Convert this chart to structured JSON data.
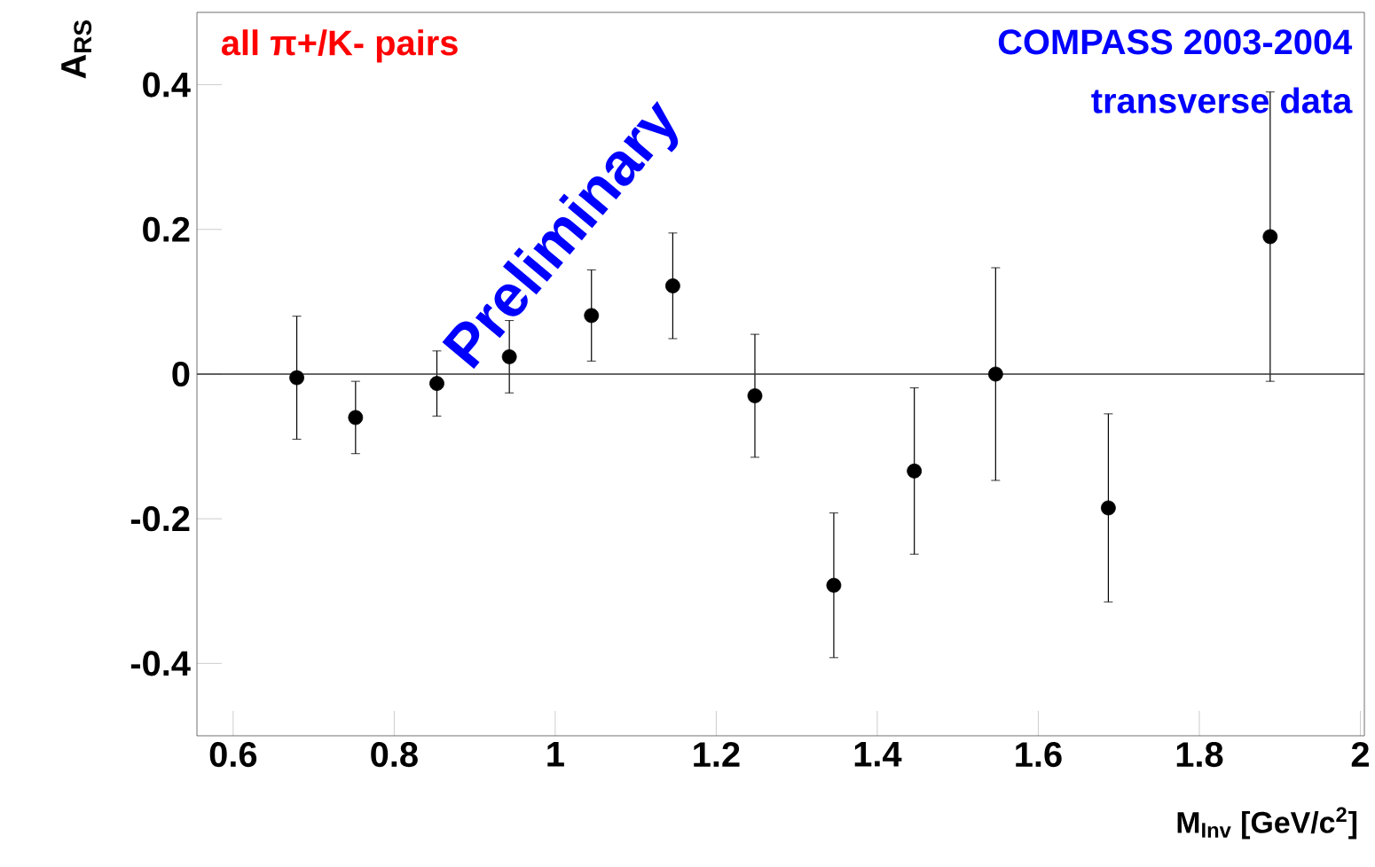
{
  "chart_data": {
    "type": "scatter",
    "xlabel": "M$_{Inv}$ [GeV/c$^{2}$]",
    "ylabel": "A$_{RS}$",
    "annotations": [
      "all π+/K- pairs",
      "COMPASS 2003-2004",
      "transverse data",
      "Preliminary"
    ],
    "x": [
      0.679,
      0.752,
      0.853,
      0.943,
      1.045,
      1.146,
      1.248,
      1.346,
      1.446,
      1.547,
      1.687,
      1.888
    ],
    "series": [
      {
        "color": "#000000",
        "values": [
          -0.005,
          -0.06,
          -0.013,
          0.024,
          0.081,
          0.122,
          -0.03,
          -0.292,
          -0.134,
          0.0,
          -0.185,
          0.19
        ],
        "errors": [
          0.085,
          0.05,
          0.045,
          0.05,
          0.063,
          0.073,
          0.085,
          0.1,
          0.115,
          0.147,
          0.13,
          0.2
        ]
      }
    ],
    "xlim": [
      0.555,
      2.005
    ],
    "ylim": [
      -0.5,
      0.5
    ],
    "xticks": [
      0.6,
      0.8,
      1,
      1.2,
      1.4,
      1.6,
      1.8,
      2
    ],
    "yticks": [
      -0.4,
      -0.2,
      0,
      0.2,
      0.4
    ],
    "ref_lines": [
      {
        "axis": "y",
        "value": 0
      }
    ],
    "marker": "circle",
    "grid": false
  }
}
